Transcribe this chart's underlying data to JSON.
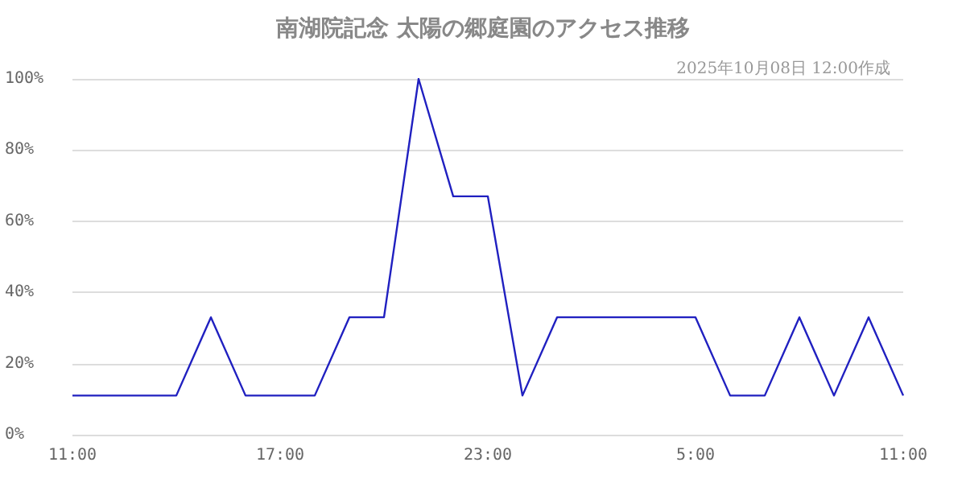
{
  "chart_data": {
    "type": "line",
    "title": "南湖院記念 太陽の郷庭園のアクセス推移",
    "subtitle": "2025年10月08日 12:00作成",
    "categories": [
      "11:00",
      null,
      null,
      null,
      null,
      null,
      "17:00",
      null,
      null,
      null,
      null,
      null,
      "23:00",
      null,
      null,
      null,
      null,
      null,
      "5:00",
      null,
      null,
      null,
      null,
      null,
      "11:00"
    ],
    "series": [
      {
        "color": "#2020c0",
        "values": [
          11,
          11,
          11,
          11,
          33,
          11,
          11,
          11,
          33,
          33,
          100,
          67,
          67,
          11,
          33,
          33,
          33,
          33,
          33,
          11,
          11,
          33,
          11,
          33,
          11
        ]
      }
    ],
    "ylim": [
      0,
      100
    ],
    "yticks": [
      {
        "value": 0,
        "label": "0%"
      },
      {
        "value": 20,
        "label": "20%"
      },
      {
        "value": 40,
        "label": "40%"
      },
      {
        "value": 60,
        "label": "60%"
      },
      {
        "value": 80,
        "label": "80%"
      },
      {
        "value": 100,
        "label": "100%"
      }
    ],
    "grid": "y",
    "marker": "none",
    "line_style": "solid"
  }
}
